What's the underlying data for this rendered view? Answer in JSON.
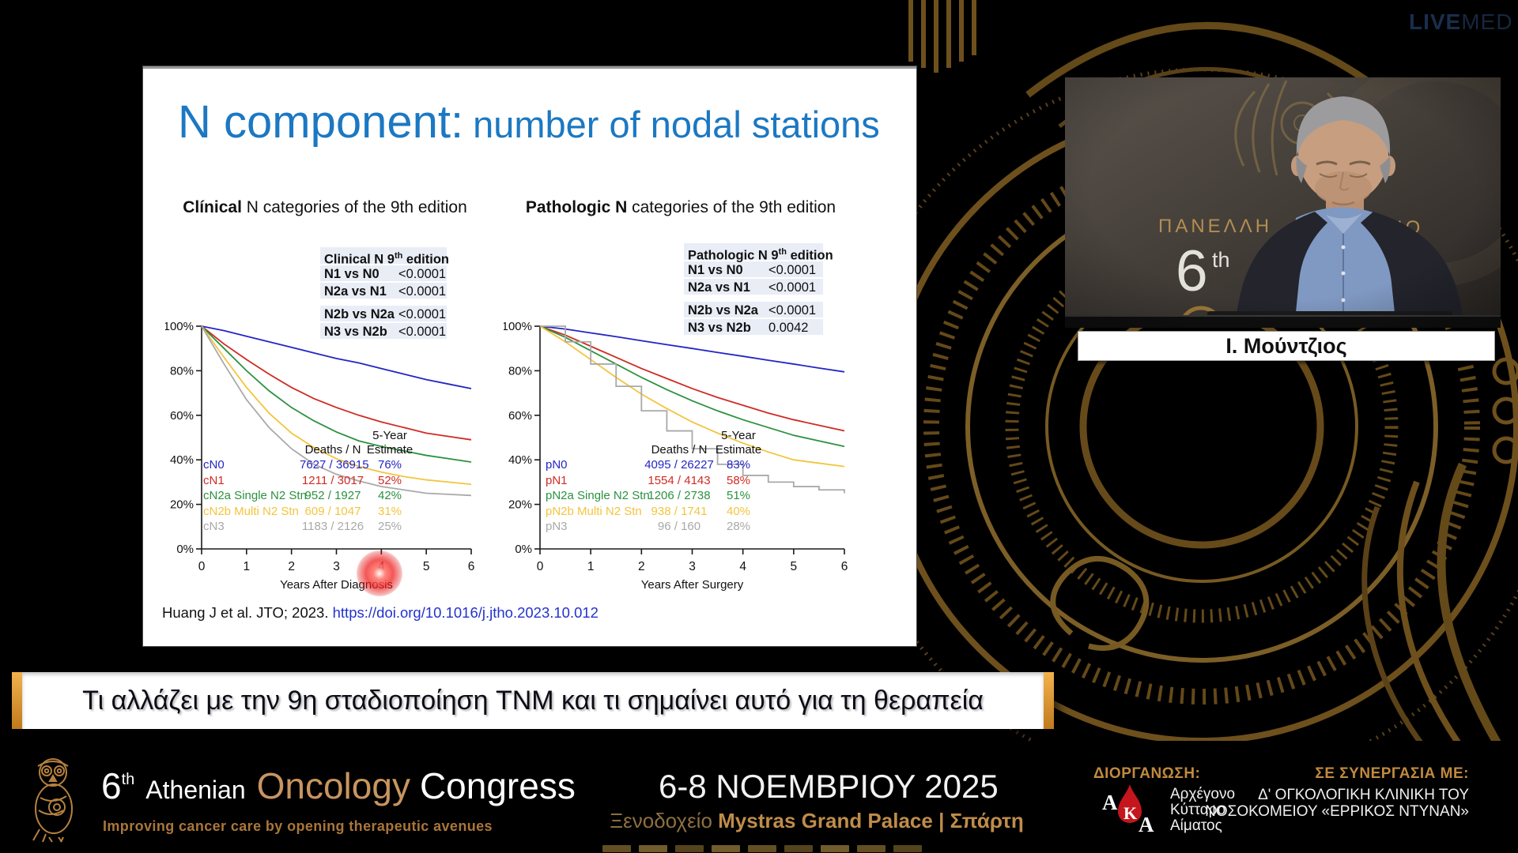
{
  "livemed": {
    "bold": "LIVE",
    "light": "MED"
  },
  "slide": {
    "title_main": "N component:",
    "title_sub": "number of nodal stations",
    "citation_text": "Huang J et al. JTO; 2023. ",
    "citation_link": "https://doi.org/10.1016/j.jtho.2023.10.012"
  },
  "chart_data": [
    {
      "type": "line",
      "subtitle_bold": "Clínical",
      "subtitle_rest": " N categories of the 9th edition",
      "xlabel": "Years After Diagnosis",
      "ylabel": "",
      "xlim": [
        0,
        6
      ],
      "ylim": [
        0,
        100
      ],
      "grid": false,
      "legend_position": "inside-lower-left",
      "xticks": [
        "0",
        "1",
        "2",
        "3",
        "4",
        "5",
        "6"
      ],
      "ytick_labels": [
        "100%",
        "80%",
        "60%",
        "40%",
        "20%",
        "0%"
      ],
      "stats_table": {
        "header_pre": "Clinical N 9",
        "header_sup": "th",
        "header_post": " edition",
        "rows": [
          [
            "N1 vs N0",
            "<0.0001"
          ],
          [
            "N2a vs N1",
            "<0.0001"
          ],
          [
            "N2b vs N2a",
            "<0.0001"
          ],
          [
            "N3 vs N2b",
            "<0.0001"
          ]
        ]
      },
      "legend_header": {
        "deaths": "Deaths / N",
        "est_top": "5-Year",
        "est_bottom": "Estimate"
      },
      "x": [
        0,
        0.5,
        1,
        1.5,
        2,
        2.5,
        3,
        3.5,
        4,
        4.5,
        5,
        5.5,
        6
      ],
      "series": [
        {
          "name": "cN0",
          "color": "#2525c6",
          "deaths_n": "7627 / 36915",
          "estimate": "76%",
          "step": false,
          "y": [
            100,
            98,
            95.5,
            93,
            90.5,
            88,
            85.5,
            83.5,
            81,
            78.5,
            76,
            74,
            72
          ]
        },
        {
          "name": "cN1",
          "color": "#cf2b24",
          "deaths_n": "1211 / 3017",
          "estimate": "52%",
          "step": false,
          "y": [
            100,
            92,
            85,
            78.5,
            72.5,
            67.5,
            63.5,
            60,
            57,
            54.5,
            52,
            50.5,
            49
          ]
        },
        {
          "name": "cN2a Single N2 Stn",
          "color": "#2c9140",
          "deaths_n": "952 / 1927",
          "estimate": "42%",
          "step": false,
          "y": [
            100,
            90,
            80,
            71,
            63.5,
            57.5,
            52.5,
            48.5,
            46,
            44,
            42,
            40.5,
            39
          ]
        },
        {
          "name": "cN2b Multi N2 Stn",
          "color": "#f2c53d",
          "deaths_n": "609 / 1047",
          "estimate": "31%",
          "step": false,
          "y": [
            100,
            86,
            72.5,
            61,
            52,
            45.5,
            40.5,
            37,
            34.5,
            32.5,
            31,
            30,
            29
          ]
        },
        {
          "name": "cN3",
          "color": "#a9a9a9",
          "deaths_n": "1183 / 2126",
          "estimate": "25%",
          "step": false,
          "y": [
            100,
            83,
            67,
            54.5,
            45,
            38,
            33.5,
            30.5,
            28,
            26.5,
            25,
            24.5,
            24
          ]
        }
      ]
    },
    {
      "type": "line",
      "subtitle_bold": "Pathologic N",
      "subtitle_rest": " categories of the 9th edition",
      "xlabel": "Years After Surgery",
      "ylabel": "",
      "xlim": [
        0,
        6
      ],
      "ylim": [
        0,
        100
      ],
      "grid": false,
      "legend_position": "inside-lower-left",
      "xticks": [
        "0",
        "1",
        "2",
        "3",
        "4",
        "5",
        "6"
      ],
      "ytick_labels": [
        "100%",
        "80%",
        "60%",
        "40%",
        "20%",
        "0%"
      ],
      "stats_table": {
        "header_pre": "Pathologic N 9",
        "header_sup": "th",
        "header_post": " edition",
        "rows": [
          [
            "N1 vs N0",
            "<0.0001"
          ],
          [
            "N2a vs N1",
            "<0.0001"
          ],
          [
            "N2b vs N2a",
            "<0.0001"
          ],
          [
            "N3 vs N2b",
            "0.0042"
          ]
        ]
      },
      "legend_header": {
        "deaths": "Deaths / N",
        "est_top": "5-Year",
        "est_bottom": "Estimate"
      },
      "x": [
        0,
        0.5,
        1,
        1.5,
        2,
        2.5,
        3,
        3.5,
        4,
        4.5,
        5,
        5.5,
        6
      ],
      "series": [
        {
          "name": "pN0",
          "color": "#2525c6",
          "deaths_n": "4095 / 26227",
          "estimate": "83%",
          "step": false,
          "y": [
            100,
            98.7,
            97,
            95.3,
            93.5,
            91.7,
            90,
            88.2,
            86.5,
            84.7,
            83,
            81.2,
            79.5
          ]
        },
        {
          "name": "pN1",
          "color": "#cf2b24",
          "deaths_n": "1554 / 4143",
          "estimate": "58%",
          "step": false,
          "y": [
            100,
            96,
            91,
            86,
            81,
            76.5,
            72,
            68,
            64.5,
            61,
            58,
            55.5,
            53
          ]
        },
        {
          "name": "pN2a Single N2 Stn",
          "color": "#2c9140",
          "deaths_n": "1206 / 2738",
          "estimate": "51%",
          "step": false,
          "y": [
            100,
            95,
            89,
            83,
            77,
            71.5,
            66.5,
            62,
            58,
            54.5,
            51,
            48.5,
            46
          ]
        },
        {
          "name": "pN2b Multi N2 Stn",
          "color": "#f2c53d",
          "deaths_n": "938 / 1741",
          "estimate": "40%",
          "step": false,
          "y": [
            100,
            93,
            85,
            77,
            69.5,
            63,
            57,
            52,
            47.5,
            43.5,
            40,
            38.5,
            37
          ]
        },
        {
          "name": "pN3",
          "color": "#a9a9a9",
          "deaths_n": "96 / 160",
          "estimate": "28%",
          "step": true,
          "y": [
            100,
            93,
            83,
            73,
            62,
            53,
            45,
            38,
            33,
            30,
            28,
            26.5,
            25
          ]
        }
      ]
    }
  ],
  "speaker": {
    "name": "Ι. Μούντζιος",
    "backdrop_left": "ΠΑΝΕΛΛΗ",
    "backdrop_right": "ΡΙΟ",
    "backdrop_number": "6",
    "backdrop_number_sup": "th"
  },
  "lecture_title": "Τι αλλάζει με την 9η σταδιοποίηση TNM και τι σημαίνει αυτό για τη θεραπεία",
  "footer": {
    "congress": {
      "number": "6",
      "number_sup": "th",
      "athenian": "Athenian",
      "oncology": "Oncology",
      "congress": "Congress",
      "tagline": "Improving cancer care by opening therapeutic avenues"
    },
    "date": "6-8 ΝΟΕΜΒΡΙΟΥ 2025",
    "venue": {
      "prefix": "Ξενοδοχείο ",
      "name": "Mystras Grand Palace",
      "divider": " | ",
      "city": "Σπάρτη"
    },
    "organizer": {
      "label": "ΔΙΟΡΓΑΝΩΣΗ:",
      "letter_a1": "A",
      "letter_k": "K",
      "letter_a2": "A",
      "name_lines": [
        "Αρχέγονο",
        "Κύτταρο",
        "Αίματος"
      ]
    },
    "partner": {
      "label": "ΣΕ ΣΥΝΕΡΓΑΣΙΑ ΜΕ:",
      "line1": "Δ' ΟΓΚΟΛΟΓΙΚΗ ΚΛΙΝΙΚΗ ΤΟΥ",
      "line2": "ΝΟΣΟΚΟΜΕΙΟΥ «ΕΡΡΙΚΟΣ ΝΤΥΝΑΝ»"
    }
  },
  "colors": {
    "accent_gold": "#c08a3e",
    "ornament_gold": "#74551f",
    "title_blue": "#1c78c2",
    "link_blue": "#2233cc",
    "series_blue": "#2525c6",
    "series_red": "#cf2b24",
    "series_green": "#2c9140",
    "series_yellow": "#f2c53d",
    "series_gray": "#a9a9a9",
    "laser_red": "#e01010"
  }
}
